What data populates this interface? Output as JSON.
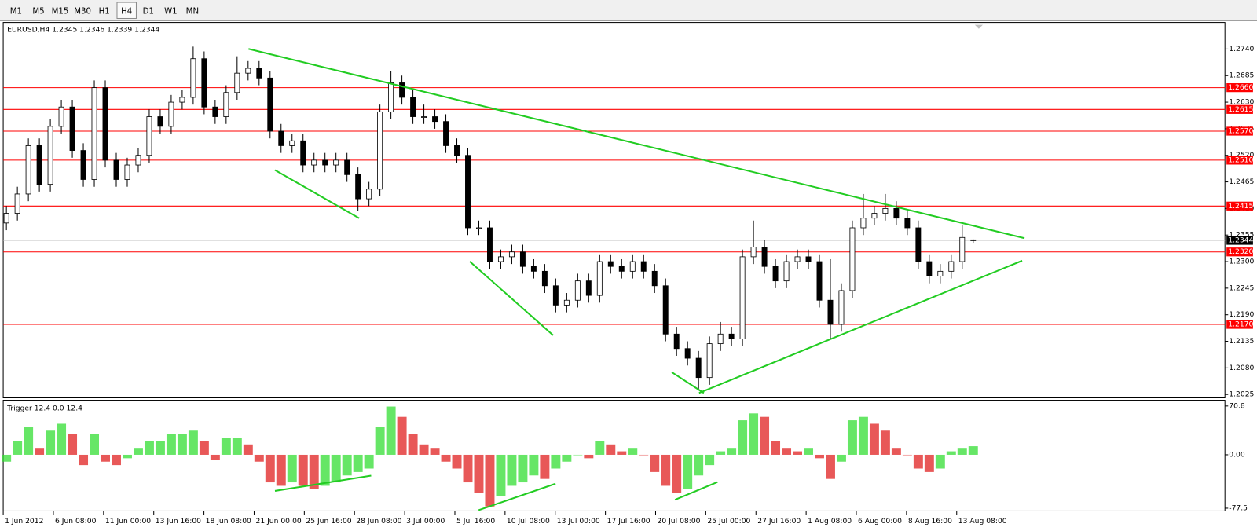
{
  "toolbar": {
    "timeframes": [
      "M1",
      "M5",
      "M15",
      "M30",
      "H1",
      "H4",
      "D1",
      "W1",
      "MN"
    ],
    "selected": 5
  },
  "chart": {
    "type": "candlestick",
    "header": "EURUSD,H4 1.2345 1.2346 1.2339 1.2344",
    "candles": [
      [
        1.238,
        1.2415,
        1.2365,
        1.24
      ],
      [
        1.24,
        1.2455,
        1.2385,
        1.244
      ],
      [
        1.244,
        1.2555,
        1.2425,
        1.254
      ],
      [
        1.254,
        1.2555,
        1.2445,
        1.246
      ],
      [
        1.246,
        1.2595,
        1.2445,
        1.258
      ],
      [
        1.258,
        1.2635,
        1.2565,
        1.262
      ],
      [
        1.262,
        1.2635,
        1.2515,
        1.253
      ],
      [
        1.253,
        1.2545,
        1.2455,
        1.247
      ],
      [
        1.247,
        1.2675,
        1.2455,
        1.266
      ],
      [
        1.266,
        1.2675,
        1.2495,
        1.251
      ],
      [
        1.251,
        1.2525,
        1.2455,
        1.247
      ],
      [
        1.247,
        1.2515,
        1.2455,
        1.25
      ],
      [
        1.25,
        1.2535,
        1.2485,
        1.252
      ],
      [
        1.252,
        1.2615,
        1.2505,
        1.26
      ],
      [
        1.26,
        1.2615,
        1.2565,
        1.258
      ],
      [
        1.258,
        1.2645,
        1.2565,
        1.263
      ],
      [
        1.263,
        1.2655,
        1.2615,
        1.264
      ],
      [
        1.264,
        1.2745,
        1.2625,
        1.272
      ],
      [
        1.272,
        1.2735,
        1.2605,
        1.262
      ],
      [
        1.262,
        1.2635,
        1.2585,
        1.26
      ],
      [
        1.26,
        1.2665,
        1.2585,
        1.265
      ],
      [
        1.265,
        1.2725,
        1.2635,
        1.269
      ],
      [
        1.269,
        1.2715,
        1.2675,
        1.27
      ],
      [
        1.27,
        1.2715,
        1.2665,
        1.268
      ],
      [
        1.268,
        1.2695,
        1.2555,
        1.257
      ],
      [
        1.257,
        1.2585,
        1.2525,
        1.254
      ],
      [
        1.254,
        1.2565,
        1.2525,
        1.255
      ],
      [
        1.255,
        1.2565,
        1.2485,
        1.25
      ],
      [
        1.25,
        1.2525,
        1.2485,
        1.251
      ],
      [
        1.251,
        1.2525,
        1.2485,
        1.25
      ],
      [
        1.25,
        1.2525,
        1.2485,
        1.251
      ],
      [
        1.251,
        1.2525,
        1.2465,
        1.248
      ],
      [
        1.248,
        1.2495,
        1.2405,
        1.243
      ],
      [
        1.243,
        1.2465,
        1.2415,
        1.245
      ],
      [
        1.245,
        1.2625,
        1.2435,
        1.261
      ],
      [
        1.261,
        1.2695,
        1.2595,
        1.267
      ],
      [
        1.267,
        1.2685,
        1.2625,
        1.264
      ],
      [
        1.264,
        1.2655,
        1.2585,
        1.26
      ],
      [
        1.26,
        1.2625,
        1.2585,
        1.26
      ],
      [
        1.26,
        1.2615,
        1.2575,
        1.259
      ],
      [
        1.259,
        1.2605,
        1.2525,
        1.254
      ],
      [
        1.254,
        1.2555,
        1.2505,
        1.252
      ],
      [
        1.252,
        1.2535,
        1.2355,
        1.237
      ],
      [
        1.237,
        1.2385,
        1.2355,
        1.237
      ],
      [
        1.237,
        1.2385,
        1.2285,
        1.23
      ],
      [
        1.23,
        1.2325,
        1.2285,
        1.231
      ],
      [
        1.231,
        1.2335,
        1.2295,
        1.232
      ],
      [
        1.232,
        1.2335,
        1.2275,
        1.229
      ],
      [
        1.229,
        1.2305,
        1.2265,
        1.228
      ],
      [
        1.228,
        1.2295,
        1.2235,
        1.225
      ],
      [
        1.225,
        1.2265,
        1.2195,
        1.221
      ],
      [
        1.221,
        1.2235,
        1.2195,
        1.222
      ],
      [
        1.222,
        1.2275,
        1.2205,
        1.226
      ],
      [
        1.226,
        1.2275,
        1.2215,
        1.223
      ],
      [
        1.223,
        1.2315,
        1.2215,
        1.23
      ],
      [
        1.23,
        1.2315,
        1.2275,
        1.229
      ],
      [
        1.229,
        1.2305,
        1.2265,
        1.228
      ],
      [
        1.228,
        1.2315,
        1.2265,
        1.23
      ],
      [
        1.23,
        1.2315,
        1.2265,
        1.228
      ],
      [
        1.228,
        1.2295,
        1.2235,
        1.225
      ],
      [
        1.225,
        1.2265,
        1.2135,
        1.215
      ],
      [
        1.215,
        1.2165,
        1.2105,
        1.212
      ],
      [
        1.212,
        1.2135,
        1.2085,
        1.21
      ],
      [
        1.21,
        1.2115,
        1.2035,
        1.206
      ],
      [
        1.206,
        1.2145,
        1.2045,
        1.213
      ],
      [
        1.213,
        1.2175,
        1.2115,
        1.215
      ],
      [
        1.215,
        1.2165,
        1.2125,
        1.214
      ],
      [
        1.214,
        1.2325,
        1.2125,
        1.231
      ],
      [
        1.231,
        1.2385,
        1.2295,
        1.233
      ],
      [
        1.233,
        1.2345,
        1.2275,
        1.229
      ],
      [
        1.229,
        1.2305,
        1.2245,
        1.226
      ],
      [
        1.226,
        1.2315,
        1.2245,
        1.23
      ],
      [
        1.23,
        1.2325,
        1.2285,
        1.231
      ],
      [
        1.231,
        1.2325,
        1.2285,
        1.23
      ],
      [
        1.23,
        1.2315,
        1.2205,
        1.222
      ],
      [
        1.222,
        1.2305,
        1.214,
        1.217
      ],
      [
        1.217,
        1.2255,
        1.2155,
        1.224
      ],
      [
        1.224,
        1.2385,
        1.2225,
        1.237
      ],
      [
        1.237,
        1.244,
        1.2355,
        1.239
      ],
      [
        1.239,
        1.2415,
        1.2375,
        1.24
      ],
      [
        1.24,
        1.244,
        1.2385,
        1.241
      ],
      [
        1.241,
        1.2425,
        1.2375,
        1.239
      ],
      [
        1.239,
        1.2405,
        1.2355,
        1.237
      ],
      [
        1.237,
        1.2385,
        1.2285,
        1.23
      ],
      [
        1.23,
        1.2315,
        1.2255,
        1.227
      ],
      [
        1.227,
        1.2295,
        1.2255,
        1.228
      ],
      [
        1.228,
        1.2315,
        1.2265,
        1.23
      ],
      [
        1.23,
        1.2375,
        1.2285,
        1.235
      ],
      [
        1.2345,
        1.2346,
        1.2339,
        1.2344
      ]
    ],
    "ylim": [
      1.2018,
      1.2795
    ],
    "yticks": [
      {
        "value": 1.274,
        "label": "1.2740"
      },
      {
        "value": 1.2685,
        "label": "1.2685"
      },
      {
        "value": 1.263,
        "label": "1.2630"
      },
      {
        "value": 1.2575,
        "label": "1.2575"
      },
      {
        "value": 1.252,
        "label": "1.2520"
      },
      {
        "value": 1.2465,
        "label": "1.2465"
      },
      {
        "value": 1.241,
        "label": "1.2410"
      },
      {
        "value": 1.2355,
        "label": "1.2355"
      },
      {
        "value": 1.23,
        "label": "1.2300"
      },
      {
        "value": 1.2245,
        "label": "1.2245"
      },
      {
        "value": 1.219,
        "label": "1.2190"
      },
      {
        "value": 1.2135,
        "label": "1.2135"
      },
      {
        "value": 1.208,
        "label": "1.2080"
      },
      {
        "value": 1.2025,
        "label": "1.2025"
      }
    ],
    "levels": [
      {
        "value": 1.266,
        "label": "1.2660"
      },
      {
        "value": 1.2615,
        "label": "1.2615"
      },
      {
        "value": 1.257,
        "label": "1.2570"
      },
      {
        "value": 1.251,
        "label": "1.2510"
      },
      {
        "value": 1.2415,
        "label": "1.2415"
      },
      {
        "value": 1.232,
        "label": "1.2320"
      },
      {
        "value": 1.217,
        "label": "1.2170"
      }
    ],
    "level_color": "#ff0000",
    "current_price": 1.2344
  },
  "indicator": {
    "type": "histogram",
    "header": "Trigger 12.4 0.0 12.4",
    "values": [
      -10,
      20,
      40,
      10,
      35,
      45,
      30,
      -15,
      30,
      -10,
      -15,
      -5,
      10,
      20,
      20,
      30,
      30,
      35,
      20,
      -8,
      25,
      25,
      15,
      -10,
      -40,
      -45,
      -40,
      -45,
      -50,
      -45,
      -40,
      -30,
      -25,
      -20,
      40,
      70,
      55,
      30,
      15,
      10,
      -10,
      -20,
      -40,
      -55,
      -75,
      -60,
      -45,
      -40,
      -30,
      -35,
      -20,
      -10,
      0,
      -5,
      20,
      15,
      5,
      10,
      0,
      -25,
      -45,
      -55,
      -50,
      -30,
      -15,
      5,
      10,
      50,
      60,
      55,
      20,
      10,
      5,
      10,
      -5,
      -35,
      -10,
      50,
      55,
      45,
      35,
      10,
      0,
      -20,
      -25,
      -20,
      5,
      10,
      12.4
    ],
    "ylim": [
      -81.5,
      79.1
    ],
    "yticks": [
      70.8,
      {
        "value": 0,
        "label": "0.00"
      },
      -77.5
    ],
    "up_color": "#33dd33",
    "down_color": "#e02020"
  },
  "x_labels": [
    "1 Jun 2012",
    "6 Jun 08:00",
    "11 Jun 00:00",
    "13 Jun 16:00",
    "18 Jun 08:00",
    "21 Jun 00:00",
    "25 Jun 16:00",
    "28 Jun 08:00",
    "3 Jul 00:00",
    "5 Jul 16:00",
    "10 Jul 08:00",
    "13 Jul 00:00",
    "17 Jul 16:00",
    "20 Jul 08:00",
    "25 Jul 00:00",
    "27 Jul 16:00",
    "1 Aug 08:00",
    "6 Aug 00:00",
    "8 Aug 16:00",
    "13 Aug 08:00"
  ]
}
